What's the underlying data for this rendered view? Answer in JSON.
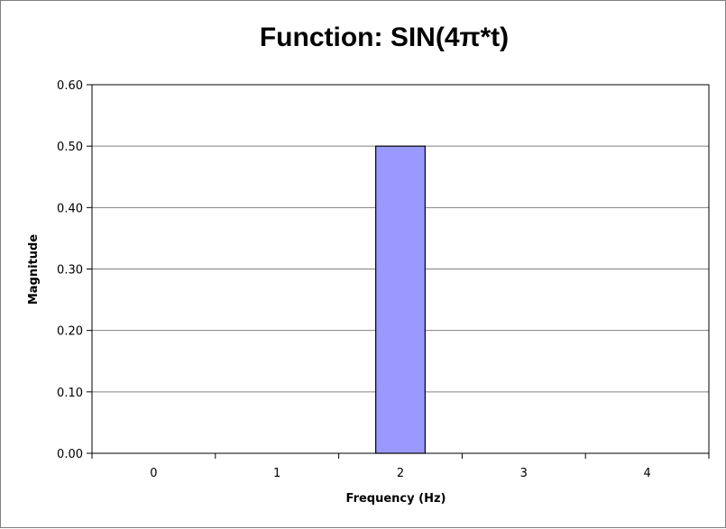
{
  "chart_data": {
    "type": "bar",
    "title": "Function:  SIN(4π*t)",
    "xlabel": "Frequency (Hz)",
    "ylabel": "Magnitude",
    "categories": [
      "0",
      "1",
      "2",
      "3",
      "4"
    ],
    "values": [
      0,
      0,
      0.5,
      0,
      0
    ],
    "ylim": [
      0,
      0.6
    ],
    "yticks": [
      "0.00",
      "0.10",
      "0.20",
      "0.30",
      "0.40",
      "0.50",
      "0.60"
    ],
    "grid": true,
    "legend": "none",
    "bar_color": "#9999ff"
  }
}
